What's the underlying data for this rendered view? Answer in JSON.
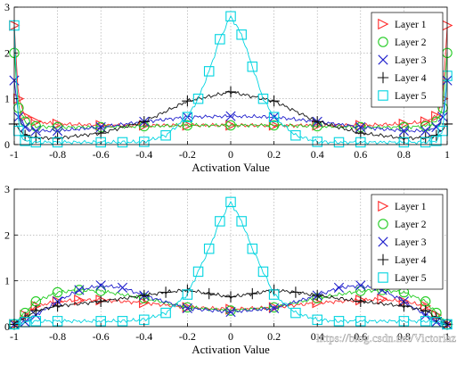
{
  "watermark": "https://blog.csdn.net/Victoriaz",
  "colors": {
    "Layer 1": "#ff2a2a",
    "Layer 2": "#22cc22",
    "Layer 3": "#2020cc",
    "Layer 4": "#111111",
    "Layer 5": "#00d4e0"
  },
  "chart_data": [
    {
      "type": "line",
      "title": "",
      "xlabel": "Activation Value",
      "ylabel": "",
      "xlim": [
        -1,
        1
      ],
      "ylim": [
        0,
        3
      ],
      "xticks": [
        "-1",
        "-0.8",
        "-0.6",
        "-0.4",
        "-0.2",
        "0",
        "0.2",
        "0.4",
        "0.6",
        "0.8",
        "1"
      ],
      "yticks": [
        "0",
        "1",
        "2",
        "3"
      ],
      "grid": true,
      "legend_position": "top-right",
      "series": [
        {
          "name": "Layer 1",
          "marker": "triangle-right",
          "x": [
            -1,
            -0.98,
            -0.95,
            -0.9,
            -0.8,
            -0.6,
            -0.4,
            -0.2,
            0,
            0.2,
            0.4,
            0.6,
            0.8,
            0.9,
            0.95,
            0.98,
            1
          ],
          "y": [
            2.6,
            1.0,
            0.62,
            0.5,
            0.45,
            0.42,
            0.42,
            0.42,
            0.42,
            0.42,
            0.42,
            0.42,
            0.45,
            0.5,
            0.62,
            1.0,
            2.6
          ]
        },
        {
          "name": "Layer 2",
          "marker": "circle",
          "x": [
            -1,
            -0.98,
            -0.95,
            -0.9,
            -0.8,
            -0.6,
            -0.4,
            -0.2,
            0,
            0.2,
            0.4,
            0.6,
            0.8,
            0.9,
            0.95,
            0.98,
            1
          ],
          "y": [
            2.0,
            0.8,
            0.5,
            0.4,
            0.38,
            0.38,
            0.4,
            0.42,
            0.42,
            0.42,
            0.4,
            0.38,
            0.38,
            0.4,
            0.5,
            0.8,
            2.0
          ]
        },
        {
          "name": "Layer 3",
          "marker": "x",
          "x": [
            -1,
            -0.98,
            -0.95,
            -0.9,
            -0.8,
            -0.6,
            -0.4,
            -0.2,
            0,
            0.2,
            0.4,
            0.6,
            0.8,
            0.9,
            0.95,
            0.98,
            1
          ],
          "y": [
            1.4,
            0.6,
            0.38,
            0.3,
            0.3,
            0.38,
            0.5,
            0.6,
            0.62,
            0.6,
            0.5,
            0.38,
            0.3,
            0.3,
            0.38,
            0.6,
            1.4
          ]
        },
        {
          "name": "Layer 4",
          "marker": "plus",
          "x": [
            -1,
            -0.95,
            -0.9,
            -0.8,
            -0.6,
            -0.4,
            -0.2,
            0,
            0.2,
            0.4,
            0.6,
            0.8,
            0.9,
            0.95,
            1
          ],
          "y": [
            0.45,
            0.2,
            0.15,
            0.14,
            0.25,
            0.5,
            0.95,
            1.15,
            0.95,
            0.5,
            0.25,
            0.14,
            0.15,
            0.2,
            0.45
          ]
        },
        {
          "name": "Layer 5",
          "marker": "square",
          "x": [
            -1,
            -0.98,
            -0.95,
            -0.9,
            -0.8,
            -0.6,
            -0.5,
            -0.4,
            -0.3,
            -0.2,
            -0.15,
            -0.1,
            -0.05,
            0,
            0.05,
            0.1,
            0.15,
            0.2,
            0.3,
            0.4,
            0.5,
            0.6,
            0.8,
            0.9,
            0.95,
            0.98,
            1
          ],
          "y": [
            2.6,
            0.3,
            0.08,
            0.05,
            0.05,
            0.05,
            0.05,
            0.06,
            0.2,
            0.6,
            1.0,
            1.6,
            2.3,
            2.8,
            2.4,
            1.7,
            1.0,
            0.6,
            0.2,
            0.06,
            0.05,
            0.05,
            0.05,
            0.05,
            0.08,
            0.3,
            1.5
          ]
        }
      ]
    },
    {
      "type": "line",
      "title": "",
      "xlabel": "Activation Value",
      "ylabel": "",
      "xlim": [
        -1,
        1
      ],
      "ylim": [
        0,
        3
      ],
      "xticks": [
        "-1",
        "-0.8",
        "-0.6",
        "-0.4",
        "-0.2",
        "0",
        "0.2",
        "0.4",
        "0.6",
        "0.8",
        "1"
      ],
      "yticks": [
        "0",
        "1",
        "2",
        "3"
      ],
      "grid": true,
      "legend_position": "top-right",
      "series": [
        {
          "name": "Layer 1",
          "marker": "triangle-right",
          "x": [
            -1,
            -0.95,
            -0.9,
            -0.8,
            -0.7,
            -0.6,
            -0.4,
            -0.2,
            0,
            0.2,
            0.4,
            0.6,
            0.7,
            0.8,
            0.9,
            0.95,
            1
          ],
          "y": [
            0.05,
            0.25,
            0.45,
            0.55,
            0.58,
            0.58,
            0.52,
            0.42,
            0.38,
            0.42,
            0.52,
            0.58,
            0.6,
            0.55,
            0.45,
            0.25,
            0.05
          ]
        },
        {
          "name": "Layer 2",
          "marker": "circle",
          "x": [
            -1,
            -0.95,
            -0.9,
            -0.8,
            -0.7,
            -0.6,
            -0.4,
            -0.2,
            0,
            0.2,
            0.4,
            0.6,
            0.7,
            0.8,
            0.9,
            0.95,
            1
          ],
          "y": [
            0.05,
            0.3,
            0.55,
            0.75,
            0.8,
            0.78,
            0.62,
            0.42,
            0.35,
            0.42,
            0.62,
            0.78,
            0.8,
            0.75,
            0.55,
            0.3,
            0.05
          ]
        },
        {
          "name": "Layer 3",
          "marker": "x",
          "x": [
            -1,
            -0.95,
            -0.9,
            -0.8,
            -0.7,
            -0.6,
            -0.5,
            -0.4,
            -0.2,
            0,
            0.2,
            0.4,
            0.5,
            0.6,
            0.7,
            0.8,
            0.9,
            0.95,
            1
          ],
          "y": [
            0.05,
            0.1,
            0.25,
            0.55,
            0.8,
            0.9,
            0.85,
            0.68,
            0.4,
            0.32,
            0.4,
            0.68,
            0.85,
            0.9,
            0.8,
            0.55,
            0.25,
            0.1,
            0.05
          ]
        },
        {
          "name": "Layer 4",
          "marker": "plus",
          "x": [
            -1,
            -0.95,
            -0.9,
            -0.8,
            -0.6,
            -0.4,
            -0.3,
            -0.2,
            -0.1,
            0,
            0.1,
            0.2,
            0.3,
            0.4,
            0.6,
            0.8,
            0.9,
            0.95,
            1
          ],
          "y": [
            0.05,
            0.2,
            0.35,
            0.45,
            0.55,
            0.68,
            0.75,
            0.8,
            0.72,
            0.65,
            0.72,
            0.8,
            0.75,
            0.68,
            0.55,
            0.45,
            0.35,
            0.2,
            0.05
          ]
        },
        {
          "name": "Layer 5",
          "marker": "square",
          "x": [
            -1,
            -0.95,
            -0.9,
            -0.8,
            -0.6,
            -0.5,
            -0.4,
            -0.3,
            -0.2,
            -0.15,
            -0.1,
            -0.05,
            0,
            0.05,
            0.1,
            0.15,
            0.2,
            0.3,
            0.4,
            0.5,
            0.6,
            0.8,
            0.9,
            0.95,
            1
          ],
          "y": [
            0.05,
            0.1,
            0.12,
            0.12,
            0.12,
            0.12,
            0.15,
            0.3,
            0.7,
            1.2,
            1.7,
            2.3,
            2.72,
            2.3,
            1.7,
            1.2,
            0.7,
            0.3,
            0.15,
            0.12,
            0.12,
            0.12,
            0.12,
            0.1,
            0.05
          ]
        }
      ]
    }
  ]
}
